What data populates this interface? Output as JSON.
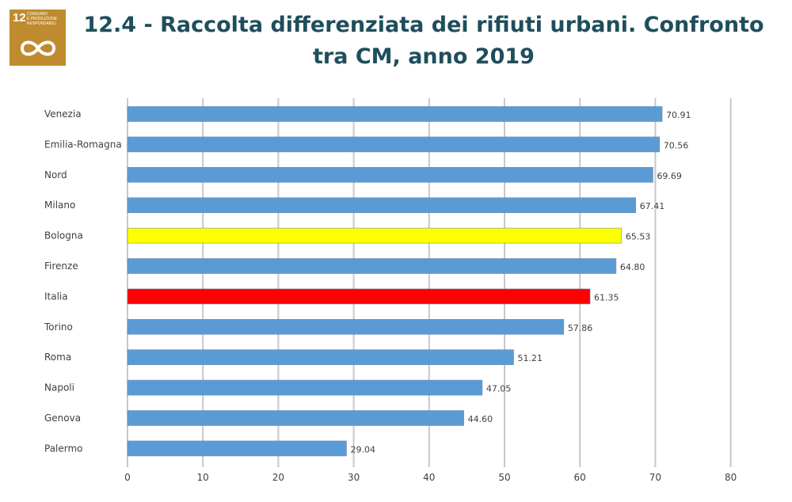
{
  "logo": {
    "number": "12",
    "text_lines": [
      "CONSUMO",
      "E PRODUZIONE",
      "RESPONSABILI"
    ]
  },
  "title": {
    "line1": "12.4 - Raccolta differenziata dei rifiuti urbani. Confronto",
    "line2": "tra CM, anno 2019"
  },
  "colors": {
    "default_bar": "#5b9bd5",
    "bologna_bar": "#ffff00",
    "italia_bar": "#ff0000",
    "logo_bg": "#bf8b2e",
    "title": "#1f4e5c"
  },
  "chart_data": {
    "type": "bar",
    "orientation": "horizontal",
    "categories": [
      "Venezia",
      "Emilia-Romagna",
      "Nord",
      "Milano",
      "Bologna",
      "Firenze",
      "Italia",
      "Torino",
      "Roma",
      "Napoli",
      "Genova",
      "Palermo"
    ],
    "values": [
      70.91,
      70.56,
      69.69,
      67.41,
      65.53,
      64.8,
      61.35,
      57.86,
      51.21,
      47.05,
      44.6,
      29.04
    ],
    "value_labels": [
      "70.91",
      "70.56",
      "69.69",
      "67.41",
      "65.53",
      "64.80",
      "61.35",
      "57.86",
      "51.21",
      "47.05",
      "44.60",
      "29.04"
    ],
    "highlight": {
      "Bologna": "#ffff00",
      "Italia": "#ff0000"
    },
    "xlim": [
      0,
      80
    ],
    "xticks": [
      "0",
      "10",
      "20",
      "30",
      "40",
      "50",
      "60",
      "70",
      "80"
    ],
    "grid": "vertical",
    "title": "",
    "xlabel": "",
    "ylabel": ""
  }
}
